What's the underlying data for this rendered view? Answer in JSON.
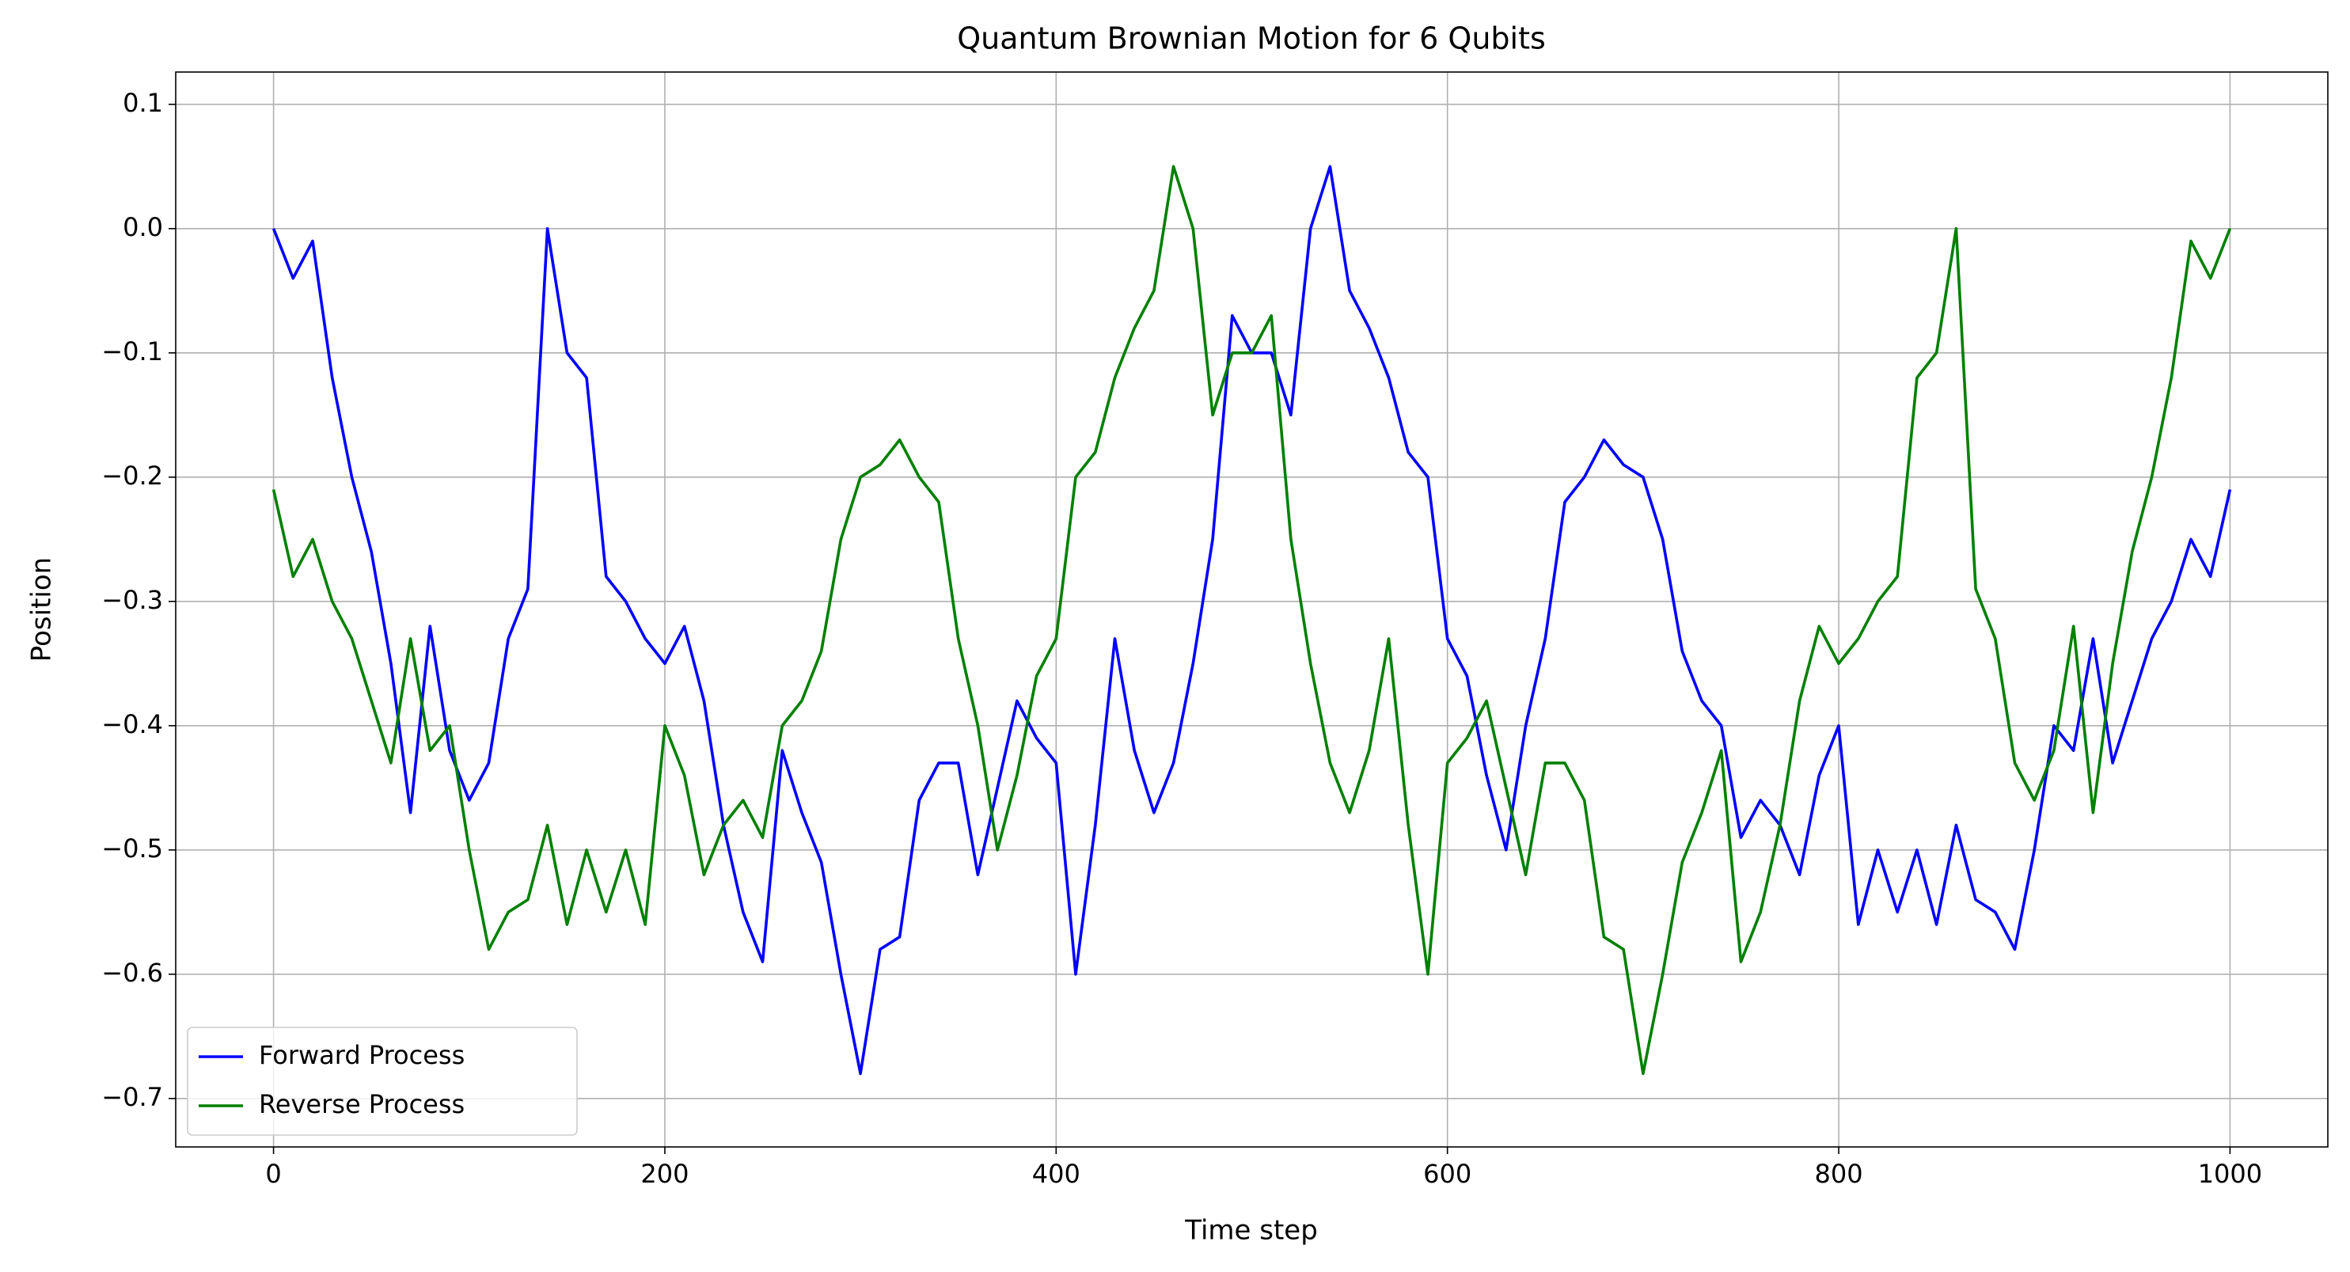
{
  "chart_data": {
    "type": "line",
    "title": "Quantum Brownian Motion for 6 Qubits",
    "xlabel": "Time step",
    "ylabel": "Position",
    "x": [
      0,
      10,
      20,
      30,
      40,
      50,
      60,
      70,
      80,
      90,
      100,
      110,
      120,
      130,
      140,
      150,
      160,
      170,
      180,
      190,
      200,
      210,
      220,
      230,
      240,
      250,
      260,
      270,
      280,
      290,
      300,
      310,
      320,
      330,
      340,
      350,
      360,
      370,
      380,
      390,
      400,
      410,
      420,
      430,
      440,
      450,
      460,
      470,
      480,
      490,
      500,
      510,
      520,
      530,
      540,
      550,
      560,
      570,
      580,
      590,
      600,
      610,
      620,
      630,
      640,
      650,
      660,
      670,
      680,
      690,
      700,
      710,
      720,
      730,
      740,
      750,
      760,
      770,
      780,
      790,
      800,
      810,
      820,
      830,
      840,
      850,
      860,
      870,
      880,
      890,
      900,
      910,
      920,
      930,
      940,
      950,
      960,
      970,
      980,
      990,
      1000
    ],
    "series": [
      {
        "name": "Forward Process",
        "color": "#0000ff",
        "values": [
          0,
          -0.04,
          -0.01,
          -0.12,
          -0.2,
          -0.26,
          -0.35,
          -0.47,
          -0.32,
          -0.42,
          -0.46,
          -0.43,
          -0.33,
          -0.29,
          0.0,
          -0.1,
          -0.12,
          -0.28,
          -0.3,
          -0.33,
          -0.35,
          -0.32,
          -0.38,
          -0.48,
          -0.55,
          -0.59,
          -0.42,
          -0.47,
          -0.51,
          -0.6,
          -0.68,
          -0.58,
          -0.57,
          -0.46,
          -0.43,
          -0.43,
          -0.52,
          -0.45,
          -0.38,
          -0.41,
          -0.43,
          -0.6,
          -0.48,
          -0.33,
          -0.42,
          -0.47,
          -0.43,
          -0.35,
          -0.25,
          -0.07,
          -0.1,
          -0.1,
          -0.15,
          0.0,
          0.05,
          -0.05,
          -0.08,
          -0.12,
          -0.18,
          -0.2,
          -0.33,
          -0.36,
          -0.44,
          -0.5,
          -0.4,
          -0.33,
          -0.22,
          -0.2,
          -0.17,
          -0.19,
          -0.2,
          -0.25,
          -0.34,
          -0.38,
          -0.4,
          -0.49,
          -0.46,
          -0.48,
          -0.52,
          -0.44,
          -0.4,
          -0.56,
          -0.5,
          -0.55,
          -0.5,
          -0.56,
          -0.48,
          -0.54,
          -0.55,
          -0.58,
          -0.5,
          -0.4,
          -0.42,
          -0.33,
          -0.43,
          -0.38,
          -0.33,
          -0.3,
          -0.25,
          -0.28,
          -0.21
        ]
      },
      {
        "name": "Reverse Process",
        "color": "#008000",
        "values": [
          -0.21,
          -0.28,
          -0.25,
          -0.3,
          -0.33,
          -0.38,
          -0.43,
          -0.33,
          -0.42,
          -0.4,
          -0.5,
          -0.58,
          -0.55,
          -0.54,
          -0.48,
          -0.56,
          -0.5,
          -0.55,
          -0.5,
          -0.56,
          -0.4,
          -0.44,
          -0.52,
          -0.48,
          -0.46,
          -0.49,
          -0.4,
          -0.38,
          -0.34,
          -0.25,
          -0.2,
          -0.19,
          -0.17,
          -0.2,
          -0.22,
          -0.33,
          -0.4,
          -0.5,
          -0.44,
          -0.36,
          -0.33,
          -0.2,
          -0.18,
          -0.12,
          -0.08,
          -0.05,
          0.05,
          0.0,
          -0.15,
          -0.1,
          -0.1,
          -0.07,
          -0.25,
          -0.35,
          -0.43,
          -0.47,
          -0.42,
          -0.33,
          -0.48,
          -0.6,
          -0.43,
          -0.41,
          -0.38,
          -0.45,
          -0.52,
          -0.43,
          -0.43,
          -0.46,
          -0.57,
          -0.58,
          -0.68,
          -0.6,
          -0.51,
          -0.47,
          -0.42,
          -0.59,
          -0.55,
          -0.48,
          -0.38,
          -0.32,
          -0.35,
          -0.33,
          -0.3,
          -0.28,
          -0.12,
          -0.1,
          0.0,
          -0.29,
          -0.33,
          -0.43,
          -0.46,
          -0.42,
          -0.32,
          -0.47,
          -0.35,
          -0.26,
          -0.2,
          -0.12,
          -0.01,
          -0.04,
          0
        ]
      }
    ],
    "xlim": [
      -50,
      1050
    ],
    "xticks": [
      0,
      200,
      400,
      600,
      800,
      1000
    ],
    "ylim": [
      -0.739,
      0.126
    ],
    "yticks": [
      {
        "value": -0.7,
        "label": "−0.7"
      },
      {
        "value": -0.6,
        "label": "−0.6"
      },
      {
        "value": -0.5,
        "label": "−0.5"
      },
      {
        "value": -0.4,
        "label": "−0.4"
      },
      {
        "value": -0.3,
        "label": "−0.3"
      },
      {
        "value": -0.2,
        "label": "−0.2"
      },
      {
        "value": -0.1,
        "label": "−0.1"
      },
      {
        "value": 0,
        "label": "0.0"
      },
      0.1
    ],
    "grid": true,
    "legend": "lower left"
  }
}
